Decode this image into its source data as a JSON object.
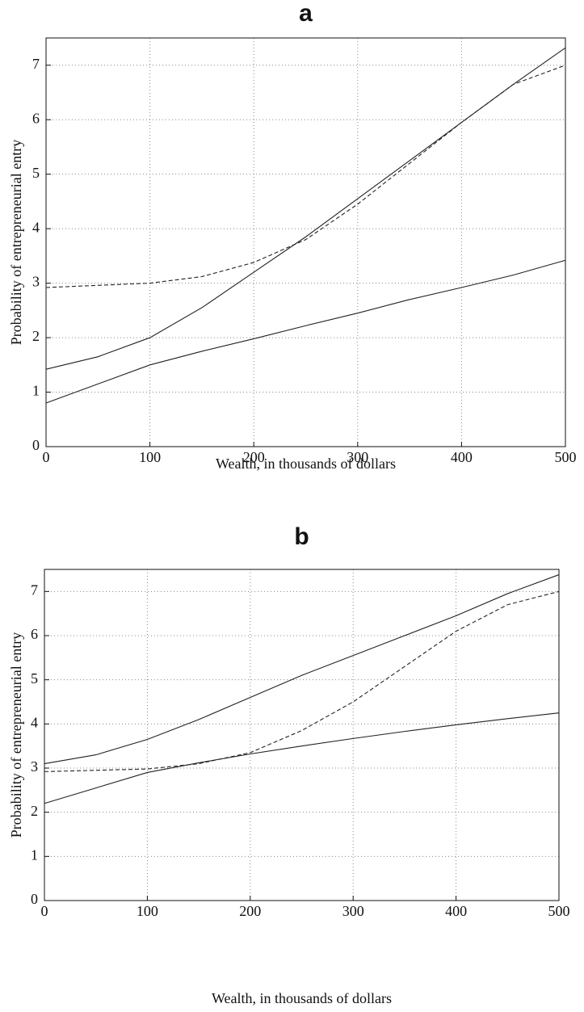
{
  "chart_data": [
    {
      "type": "line",
      "title": "a",
      "x_label": "Wealth, in thousands of dollars",
      "y_label": "Probability of entrepreneurial entry",
      "x": [
        0,
        50,
        100,
        150,
        200,
        250,
        300,
        350,
        400,
        450,
        500
      ],
      "series": [
        {
          "color": "#222222",
          "style": "solid",
          "values": [
            1.42,
            1.65,
            2.0,
            2.55,
            3.2,
            3.85,
            4.55,
            5.25,
            5.95,
            6.65,
            7.32
          ]
        },
        {
          "color": "#222222",
          "style": "solid",
          "values": [
            0.8,
            1.15,
            1.5,
            1.75,
            1.98,
            2.22,
            2.45,
            2.7,
            2.92,
            3.15,
            3.42
          ]
        },
        {
          "color": "#222222",
          "style": "dashed",
          "values": [
            2.92,
            2.96,
            3.0,
            3.12,
            3.38,
            3.8,
            4.45,
            5.2,
            5.95,
            6.65,
            7.0
          ]
        }
      ],
      "xlim": [
        0,
        500
      ],
      "xticks": [
        0,
        100,
        200,
        300,
        400,
        500
      ],
      "ylim": [
        0,
        7.5
      ],
      "yticks": [
        0,
        1,
        2,
        3,
        4,
        5,
        6,
        7
      ],
      "grid": true
    },
    {
      "type": "line",
      "title": "b",
      "x_label": "Wealth, in thousands of dollars",
      "y_label": "Probability of entrepreneurial entry",
      "x": [
        0,
        50,
        100,
        150,
        200,
        250,
        300,
        350,
        400,
        450,
        500
      ],
      "series": [
        {
          "color": "#222222",
          "style": "solid",
          "values": [
            3.1,
            3.3,
            3.65,
            4.1,
            4.6,
            5.1,
            5.55,
            6.0,
            6.45,
            6.95,
            7.38
          ]
        },
        {
          "color": "#222222",
          "style": "solid",
          "values": [
            2.2,
            2.55,
            2.9,
            3.12,
            3.32,
            3.5,
            3.67,
            3.83,
            3.98,
            4.12,
            4.25
          ]
        },
        {
          "color": "#222222",
          "style": "dashed",
          "values": [
            2.92,
            2.95,
            2.98,
            3.1,
            3.35,
            3.85,
            4.5,
            5.3,
            6.1,
            6.7,
            7.0
          ]
        }
      ],
      "xlim": [
        0,
        500
      ],
      "xticks": [
        0,
        100,
        200,
        300,
        400,
        500
      ],
      "ylim": [
        0,
        7.5
      ],
      "yticks": [
        0,
        1,
        2,
        3,
        4,
        5,
        6,
        7
      ],
      "grid": true
    }
  ]
}
